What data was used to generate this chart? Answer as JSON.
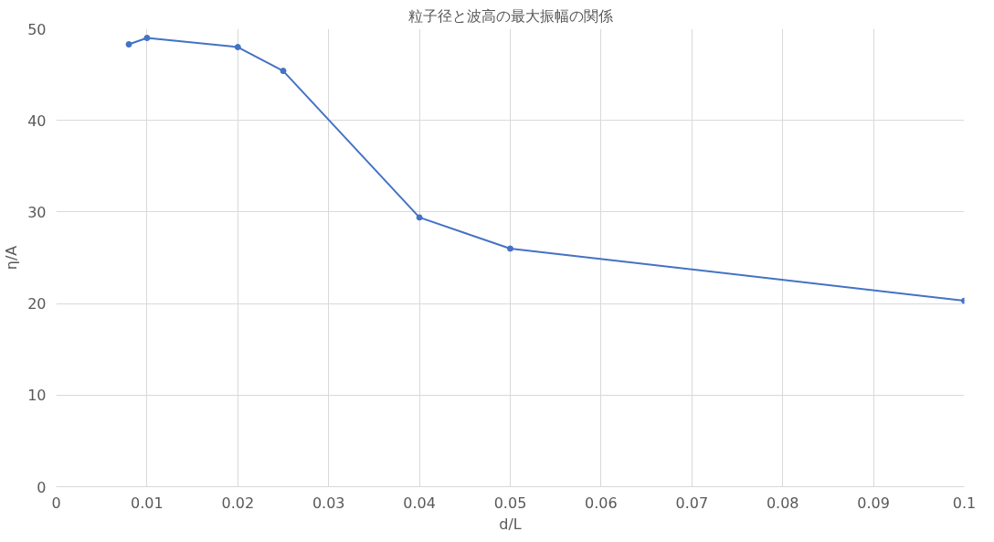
{
  "chart_data": {
    "type": "line",
    "title": "粒子径と波高の最大振幅の関係",
    "xlabel": "d/L",
    "ylabel": "η/A",
    "x": [
      0.008,
      0.01,
      0.02,
      0.025,
      0.04,
      0.05,
      0.1
    ],
    "series": [
      {
        "color": "#4472c4",
        "values": [
          48.3,
          49.0,
          48.0,
          45.4,
          29.4,
          26.0,
          20.3
        ]
      }
    ],
    "xlim": [
      0,
      0.1
    ],
    "xticks": [
      0,
      0.01,
      0.02,
      0.03,
      0.04,
      0.05,
      0.06,
      0.07,
      0.08,
      0.09,
      0.1
    ],
    "ylim": [
      0,
      50
    ],
    "yticks": [
      0,
      10,
      20,
      30,
      40,
      50
    ],
    "grid": true,
    "marker": "circle",
    "line_style": "solid"
  }
}
